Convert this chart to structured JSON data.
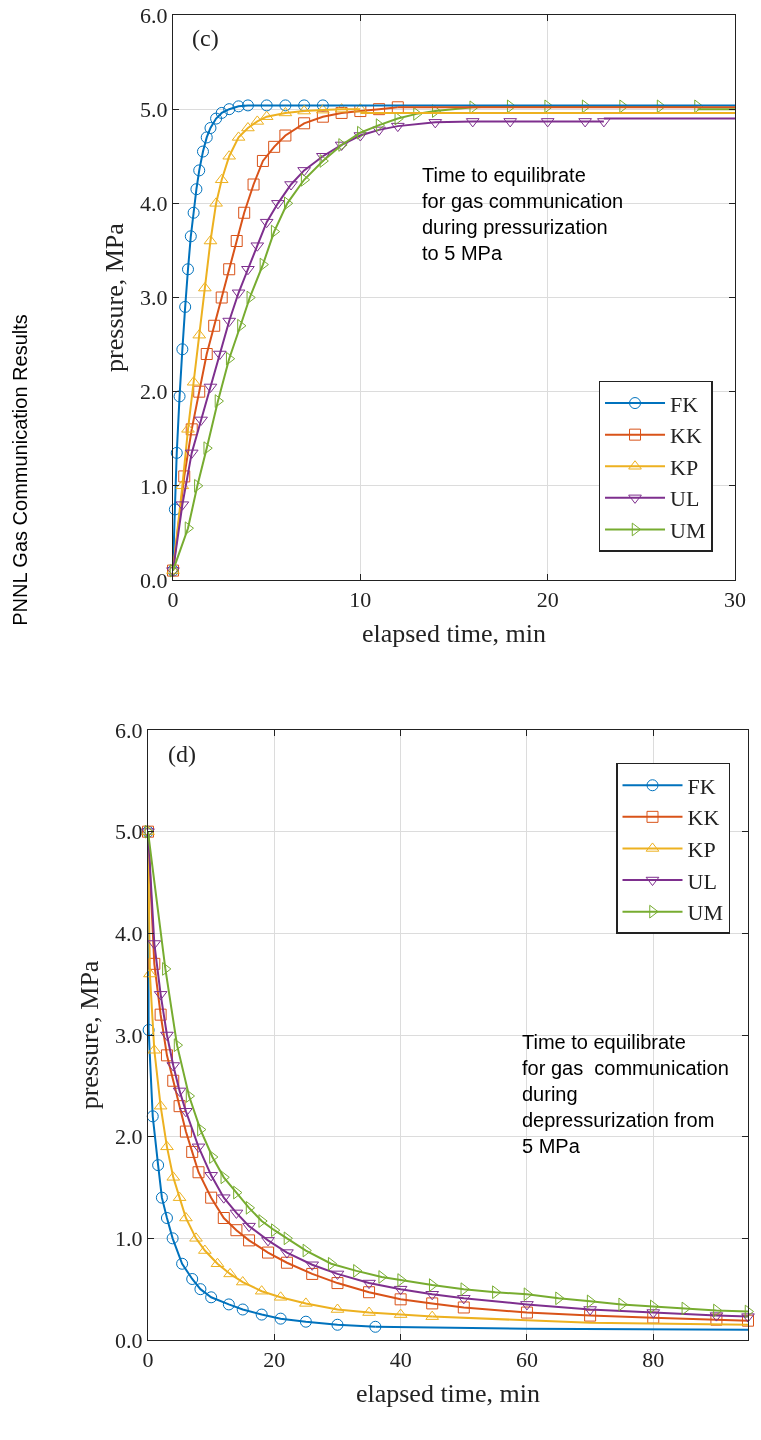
{
  "chart_data": [
    {
      "type": "line",
      "title": "PNNL Gas Communication Results",
      "xlabel": "elapsed time, min",
      "ylabel": "pressure, MPa",
      "annotations": [
        "(c)",
        "Time to equilibrate for gas communication during pressurization to 5 MPa"
      ],
      "xlim": [
        0,
        30
      ],
      "xticks": [
        0,
        10,
        20,
        30
      ],
      "ylim": [
        0,
        6
      ],
      "yticks": [
        {
          "value": 0,
          "label": "0.0"
        },
        {
          "value": 1,
          "label": "1.0"
        },
        {
          "value": 2,
          "label": "2.0"
        },
        {
          "value": 3,
          "label": "3.0"
        },
        {
          "value": 4,
          "label": "4.0"
        },
        {
          "value": 5,
          "label": "5.0"
        },
        {
          "value": 6,
          "label": "6.0"
        }
      ],
      "grid": true,
      "legend": "bottom right",
      "series": [
        {
          "name": "FK",
          "color": "#0072bd",
          "marker": "circle",
          "x": [
            0,
            0.1,
            0.2,
            0.35,
            0.5,
            0.65,
            0.8,
            0.95,
            1.1,
            1.25,
            1.4,
            1.6,
            1.8,
            2.0,
            2.3,
            2.6,
            3.0,
            3.5,
            4,
            5,
            6,
            7,
            8
          ],
          "values": [
            0.1,
            0.75,
            1.35,
            1.95,
            2.45,
            2.9,
            3.3,
            3.65,
            3.9,
            4.15,
            4.35,
            4.55,
            4.7,
            4.8,
            4.9,
            4.96,
            5.0,
            5.03,
            5.04,
            5.04,
            5.04,
            5.04,
            5.04
          ]
        },
        {
          "name": "KK",
          "color": "#d95319",
          "marker": "square",
          "x": [
            0,
            0.6,
            1.0,
            1.4,
            1.8,
            2.2,
            2.6,
            3.0,
            3.4,
            3.8,
            4.3,
            4.8,
            5.4,
            6,
            7,
            8,
            9,
            10,
            11,
            12
          ],
          "values": [
            0.1,
            1.1,
            1.6,
            2.0,
            2.4,
            2.7,
            3.0,
            3.3,
            3.6,
            3.9,
            4.2,
            4.45,
            4.6,
            4.72,
            4.85,
            4.92,
            4.96,
            4.98,
            5.0,
            5.02
          ]
        },
        {
          "name": "KP",
          "color": "#edb120",
          "marker": "triangle",
          "x": [
            0,
            0.5,
            0.8,
            1.1,
            1.4,
            1.7,
            2.0,
            2.3,
            2.6,
            3.0,
            3.5,
            4,
            4.5,
            5,
            6,
            7,
            8,
            9,
            10
          ],
          "values": [
            0.1,
            1.0,
            1.6,
            2.1,
            2.6,
            3.1,
            3.6,
            4.0,
            4.25,
            4.5,
            4.7,
            4.8,
            4.87,
            4.92,
            4.96,
            4.98,
            4.99,
            5.0,
            5.0
          ]
        },
        {
          "name": "UL",
          "color": "#7e2f8e",
          "marker": "triangle-down",
          "x": [
            0,
            0.5,
            1.0,
            1.5,
            2.0,
            2.5,
            3.0,
            3.5,
            4.0,
            4.5,
            5.0,
            5.6,
            6.3,
            7,
            8,
            9,
            10,
            11,
            12,
            14,
            16,
            18,
            20,
            22,
            23
          ],
          "values": [
            0.1,
            0.8,
            1.35,
            1.7,
            2.05,
            2.4,
            2.75,
            3.05,
            3.3,
            3.55,
            3.8,
            4.0,
            4.2,
            4.35,
            4.5,
            4.62,
            4.72,
            4.78,
            4.82,
            4.86,
            4.87,
            4.87,
            4.87,
            4.87,
            4.87
          ]
        },
        {
          "name": "UM",
          "color": "#77ac30",
          "marker": "triangle-right",
          "x": [
            0,
            0.8,
            1.3,
            1.8,
            2.4,
            3.0,
            3.6,
            4.1,
            4.8,
            5.4,
            6.1,
            7,
            8,
            9,
            10,
            11,
            12,
            13,
            14,
            16,
            18,
            20,
            22,
            24,
            26,
            28
          ],
          "values": [
            0.1,
            0.55,
            1.0,
            1.4,
            1.9,
            2.35,
            2.7,
            3.0,
            3.35,
            3.7,
            4.0,
            4.25,
            4.45,
            4.62,
            4.75,
            4.83,
            4.9,
            4.95,
            4.98,
            5.02,
            5.03,
            5.03,
            5.03,
            5.03,
            5.03,
            5.03
          ]
        },
        {
          "color": "#0072bd",
          "marker": "none",
          "x": [
            8,
            30
          ],
          "values": [
            5.04,
            5.04
          ]
        },
        {
          "color": "#d95319",
          "marker": "none",
          "x": [
            12,
            30
          ],
          "values": [
            5.02,
            5.02
          ]
        },
        {
          "color": "#edb120",
          "marker": "none",
          "x": [
            10,
            30
          ],
          "values": [
            4.96,
            4.96
          ]
        },
        {
          "color": "#7e2f8e",
          "marker": "none",
          "x": [
            23,
            30
          ],
          "values": [
            4.9,
            4.9
          ]
        },
        {
          "color": "#77ac30",
          "marker": "none",
          "x": [
            28,
            30
          ],
          "values": [
            5.0,
            5.0
          ]
        }
      ]
    },
    {
      "type": "line",
      "xlabel": "elapsed time, min",
      "ylabel": "pressure, MPa",
      "annotations": [
        "(d)",
        "Time to equilibrate for gas  communication during depressurization from 5 MPa"
      ],
      "xlim": [
        0,
        95
      ],
      "xticks": [
        0,
        20,
        40,
        60,
        80
      ],
      "ylim": [
        0,
        6
      ],
      "yticks": [
        {
          "value": 0,
          "label": "0.0"
        },
        {
          "value": 1,
          "label": "1.0"
        },
        {
          "value": 2,
          "label": "2.0"
        },
        {
          "value": 3,
          "label": "3.0"
        },
        {
          "value": 4,
          "label": "4.0"
        },
        {
          "value": 5,
          "label": "5.0"
        },
        {
          "value": 6,
          "label": "6.0"
        }
      ],
      "grid": true,
      "legend": "top right",
      "series": [
        {
          "name": "FK",
          "color": "#0072bd",
          "marker": "circle",
          "x": [
            0,
            0.1,
            0.75,
            1.6,
            2.2,
            3.0,
            3.9,
            5.4,
            7,
            8.3,
            10,
            12.8,
            15,
            18,
            21,
            25,
            30,
            36
          ],
          "values": [
            5.0,
            3.05,
            2.2,
            1.72,
            1.4,
            1.2,
            1.0,
            0.75,
            0.6,
            0.5,
            0.42,
            0.35,
            0.3,
            0.25,
            0.21,
            0.18,
            0.15,
            0.13
          ]
        },
        {
          "name": "KK",
          "color": "#d95319",
          "marker": "square",
          "x": [
            0,
            1,
            2,
            3,
            4,
            5,
            6,
            7,
            8,
            10,
            12,
            14,
            16,
            19,
            22,
            26,
            30,
            35,
            40,
            45,
            50,
            60,
            70,
            80,
            90,
            95
          ],
          "values": [
            5.0,
            3.7,
            3.2,
            2.8,
            2.55,
            2.3,
            2.05,
            1.85,
            1.65,
            1.4,
            1.2,
            1.08,
            0.98,
            0.86,
            0.76,
            0.65,
            0.56,
            0.47,
            0.4,
            0.36,
            0.32,
            0.27,
            0.24,
            0.22,
            0.2,
            0.19
          ]
        },
        {
          "name": "KP",
          "color": "#edb120",
          "marker": "triangle",
          "x": [
            0,
            0.3,
            1,
            2,
            3,
            4,
            5,
            6,
            7.6,
            9,
            11,
            13,
            15,
            18,
            21,
            25,
            30,
            35,
            40,
            45
          ],
          "values": [
            5.0,
            3.6,
            2.85,
            2.3,
            1.9,
            1.6,
            1.4,
            1.2,
            1.0,
            0.88,
            0.75,
            0.65,
            0.57,
            0.48,
            0.42,
            0.36,
            0.3,
            0.27,
            0.25,
            0.23
          ]
        },
        {
          "name": "UL",
          "color": "#7e2f8e",
          "marker": "triangle-down",
          "x": [
            0,
            1,
            2,
            3,
            4,
            5,
            6,
            8,
            10,
            12,
            14,
            16,
            19,
            22,
            26,
            30,
            35,
            40,
            45,
            50,
            60,
            70,
            80,
            90,
            95
          ],
          "values": [
            5.0,
            3.9,
            3.4,
            3.0,
            2.7,
            2.45,
            2.25,
            1.9,
            1.62,
            1.4,
            1.25,
            1.12,
            0.98,
            0.86,
            0.74,
            0.65,
            0.56,
            0.5,
            0.45,
            0.41,
            0.35,
            0.3,
            0.27,
            0.24,
            0.23
          ]
        },
        {
          "name": "UM",
          "color": "#77ac30",
          "marker": "triangle-right",
          "x": [
            0,
            2.75,
            4.6,
            6.5,
            8.3,
            10.2,
            12,
            14,
            16,
            18,
            20,
            22,
            25,
            29,
            33,
            37,
            40,
            45,
            50,
            55,
            60,
            65,
            70,
            75,
            80,
            85,
            90,
            95
          ],
          "values": [
            5.0,
            3.65,
            2.9,
            2.4,
            2.07,
            1.8,
            1.6,
            1.45,
            1.3,
            1.17,
            1.08,
            1.0,
            0.88,
            0.75,
            0.68,
            0.62,
            0.59,
            0.54,
            0.5,
            0.47,
            0.45,
            0.41,
            0.38,
            0.35,
            0.33,
            0.31,
            0.29,
            0.28
          ]
        },
        {
          "color": "#0072bd",
          "marker": "none",
          "x": [
            36,
            60,
            95
          ],
          "values": [
            0.13,
            0.11,
            0.1
          ]
        },
        {
          "color": "#edb120",
          "marker": "none",
          "x": [
            45,
            70,
            95
          ],
          "values": [
            0.23,
            0.17,
            0.15
          ]
        }
      ]
    }
  ]
}
